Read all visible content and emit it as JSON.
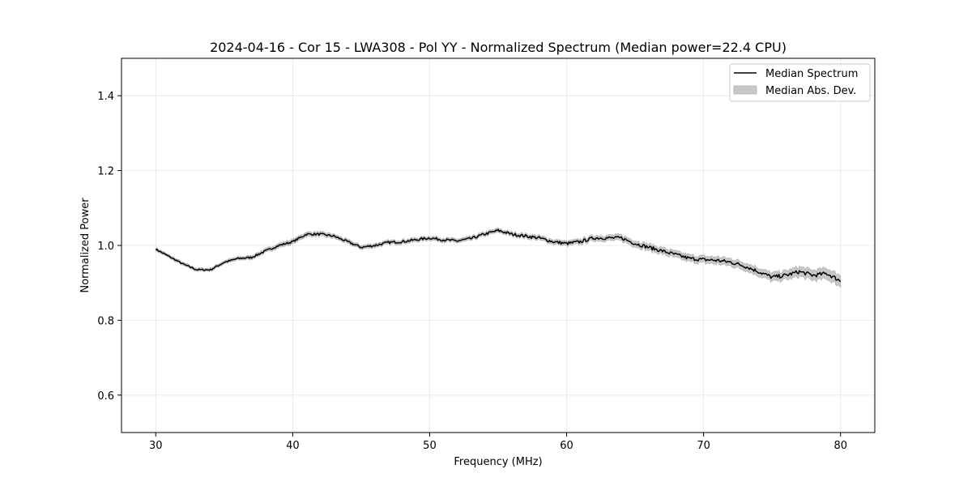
{
  "chart_data": {
    "type": "line",
    "title": "2024-04-16 - Cor 15 - LWA308 - Pol YY - Normalized Spectrum (Median power=22.4 CPU)",
    "xlabel": "Frequency (MHz)",
    "ylabel": "Normalized Power",
    "xlim": [
      27.5,
      82.5
    ],
    "ylim": [
      0.5,
      1.5
    ],
    "xticks": [
      30,
      40,
      50,
      60,
      70,
      80
    ],
    "yticks": [
      0.6,
      0.8,
      1.0,
      1.2,
      1.4
    ],
    "xtick_labels": [
      "30",
      "40",
      "50",
      "60",
      "70",
      "80"
    ],
    "ytick_labels": [
      "0.6",
      "0.8",
      "1.0",
      "1.2",
      "1.4"
    ],
    "grid": true,
    "legend_position": "upper-right",
    "legend": [
      {
        "label": "Median Spectrum",
        "kind": "line",
        "color": "#000000"
      },
      {
        "label": "Median Abs. Dev.",
        "kind": "patch",
        "color": "#c8c8c8"
      }
    ],
    "series": [
      {
        "name": "Median Spectrum",
        "color": "#000000",
        "x": [
          30,
          31,
          32,
          33,
          34,
          35,
          36,
          37,
          38,
          39,
          40,
          41,
          42,
          43,
          44,
          45,
          46,
          47,
          48,
          49,
          50,
          51,
          52,
          53,
          54,
          55,
          56,
          57,
          58,
          59,
          60,
          61,
          62,
          63,
          64,
          65,
          66,
          67,
          68,
          69,
          70,
          71,
          72,
          73,
          74,
          75,
          76,
          77,
          78,
          79,
          80
        ],
        "y": [
          0.99,
          0.97,
          0.95,
          0.935,
          0.935,
          0.955,
          0.965,
          0.968,
          0.985,
          1.0,
          1.01,
          1.03,
          1.03,
          1.025,
          1.01,
          0.995,
          1.0,
          1.008,
          1.01,
          1.015,
          1.02,
          1.015,
          1.012,
          1.018,
          1.03,
          1.04,
          1.03,
          1.025,
          1.02,
          1.01,
          1.005,
          1.01,
          1.02,
          1.02,
          1.02,
          1.005,
          0.995,
          0.985,
          0.975,
          0.965,
          0.962,
          0.96,
          0.955,
          0.945,
          0.93,
          0.915,
          0.92,
          0.93,
          0.92,
          0.925,
          0.905
        ]
      }
    ],
    "mad_band": {
      "name": "Median Abs. Dev.",
      "x": [
        30,
        35,
        40,
        45,
        50,
        55,
        60,
        65,
        70,
        75,
        80
      ],
      "halfwidth": [
        0.004,
        0.004,
        0.006,
        0.005,
        0.005,
        0.005,
        0.006,
        0.008,
        0.009,
        0.011,
        0.015
      ]
    }
  }
}
